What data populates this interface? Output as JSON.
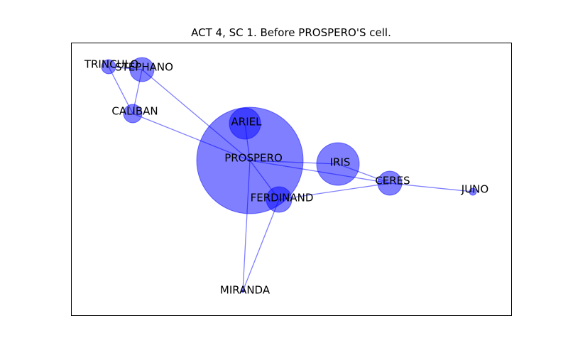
{
  "title": "ACT 4, SC 1. Before PROSPERO'S cell.",
  "colors": {
    "node": "#0000ff",
    "edge": "#0000ff"
  },
  "nodes": [
    {
      "id": "PROSPERO",
      "label": "PROSPERO"
    },
    {
      "id": "ARIEL",
      "label": "ARIEL"
    },
    {
      "id": "IRIS",
      "label": "IRIS"
    },
    {
      "id": "CERES",
      "label": "CERES"
    },
    {
      "id": "JUNO",
      "label": "JUNO"
    },
    {
      "id": "FERDINAND",
      "label": "FERDINAND"
    },
    {
      "id": "MIRANDA",
      "label": "MIRANDA"
    },
    {
      "id": "CALIBAN",
      "label": "CALIBAN"
    },
    {
      "id": "STEPHANO",
      "label": "STEPHANO"
    },
    {
      "id": "TRINCULO",
      "label": "TRINCULO"
    }
  ],
  "edges": [
    [
      "PROSPERO",
      "ARIEL"
    ],
    [
      "PROSPERO",
      "IRIS"
    ],
    [
      "PROSPERO",
      "CALIBAN"
    ],
    [
      "PROSPERO",
      "MIRANDA"
    ],
    [
      "PROSPERO",
      "FERDINAND"
    ],
    [
      "PROSPERO",
      "CERES"
    ],
    [
      "PROSPERO",
      "STEPHANO"
    ],
    [
      "IRIS",
      "CERES"
    ],
    [
      "CERES",
      "JUNO"
    ],
    [
      "CERES",
      "FERDINAND"
    ],
    [
      "FERDINAND",
      "MIRANDA"
    ],
    [
      "CALIBAN",
      "STEPHANO"
    ],
    [
      "CALIBAN",
      "TRINCULO"
    ],
    [
      "STEPHANO",
      "TRINCULO"
    ]
  ]
}
